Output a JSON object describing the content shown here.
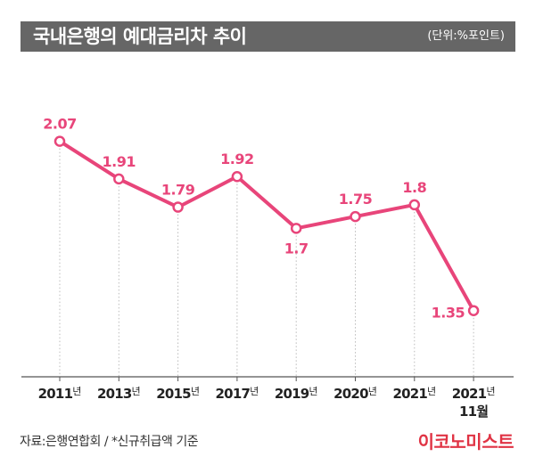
{
  "header": {
    "title": "국내은행의 예대금리차 추이",
    "unit": "(단위:%포인트)"
  },
  "chart_data": {
    "type": "line",
    "title": "국내은행의 예대금리차 추이",
    "unit": "(단위:%포인트)",
    "categories": [
      "2011년",
      "2013년",
      "2015년",
      "2017년",
      "2019년",
      "2020년",
      "2021년",
      "2021년 11월"
    ],
    "tick_labels": [
      {
        "year": "2011",
        "suffix": "년",
        "line2": ""
      },
      {
        "year": "2013",
        "suffix": "년",
        "line2": ""
      },
      {
        "year": "2015",
        "suffix": "년",
        "line2": ""
      },
      {
        "year": "2017",
        "suffix": "년",
        "line2": ""
      },
      {
        "year": "2019",
        "suffix": "년",
        "line2": ""
      },
      {
        "year": "2020",
        "suffix": "년",
        "line2": ""
      },
      {
        "year": "2021",
        "suffix": "년",
        "line2": ""
      },
      {
        "year": "2021",
        "suffix": "년",
        "line2": "11월"
      }
    ],
    "series": [
      {
        "values": [
          2.07,
          1.91,
          1.79,
          1.92,
          1.7,
          1.75,
          1.8,
          1.35
        ],
        "labels": [
          "2.07",
          "1.91",
          "1.79",
          "1.92",
          "1.7",
          "1.75",
          "1.8",
          "1.35"
        ]
      }
    ],
    "label_position": [
      "above",
      "above",
      "above",
      "above",
      "below",
      "above",
      "above",
      "left"
    ],
    "ylim": [
      1.08,
      2.33
    ],
    "grid": "vertical dotted",
    "colors": {
      "line": "#e8457a",
      "label": "#e8457a",
      "axis": "#555555",
      "grid": "#bbbbbb"
    }
  },
  "footer": {
    "source": "자료:은행연합회 / *신규취급액 기준",
    "logo": "이코노미스트"
  }
}
